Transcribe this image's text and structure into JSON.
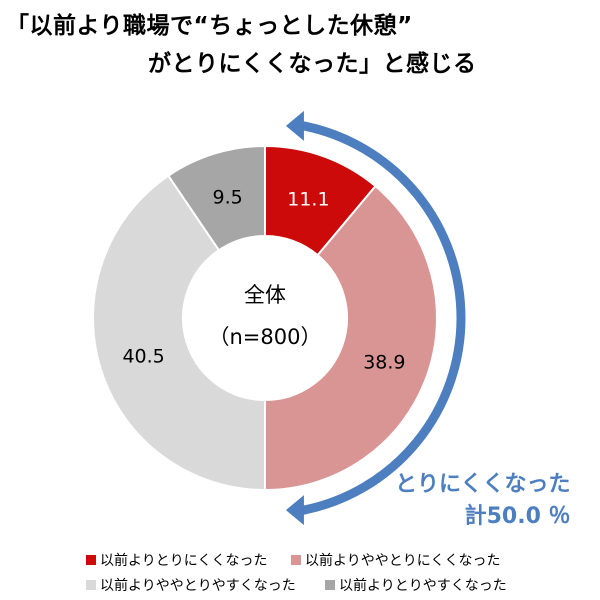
{
  "title": {
    "line1": "「以前より職場で“ちょっとした休憩”",
    "line2": "がとりにくくなった」と感じる"
  },
  "colors": {
    "much_harder": "#cc0a0a",
    "somewhat_harder": "#d99594",
    "somewhat_easier": "#d9d9d9",
    "much_easier": "#a6a6a6",
    "arrow": "#4d7ebf"
  },
  "chart_data": {
    "type": "pie",
    "style": "donut",
    "center_label": "全体",
    "center_sublabel": "（n=800）",
    "categories": [
      "以前よりとりにくくなった",
      "以前よりややとりにくくなった",
      "以前よりややとりやすくなった",
      "以前よりとりやすくなった"
    ],
    "values": [
      11.1,
      38.9,
      40.5,
      9.5
    ],
    "value_labels": [
      "11.1",
      "38.9",
      "40.5",
      "9.5"
    ],
    "legend_position": "bottom",
    "annotation": {
      "line1": "とりにくくなった",
      "line2": "計50.0 ％"
    }
  }
}
